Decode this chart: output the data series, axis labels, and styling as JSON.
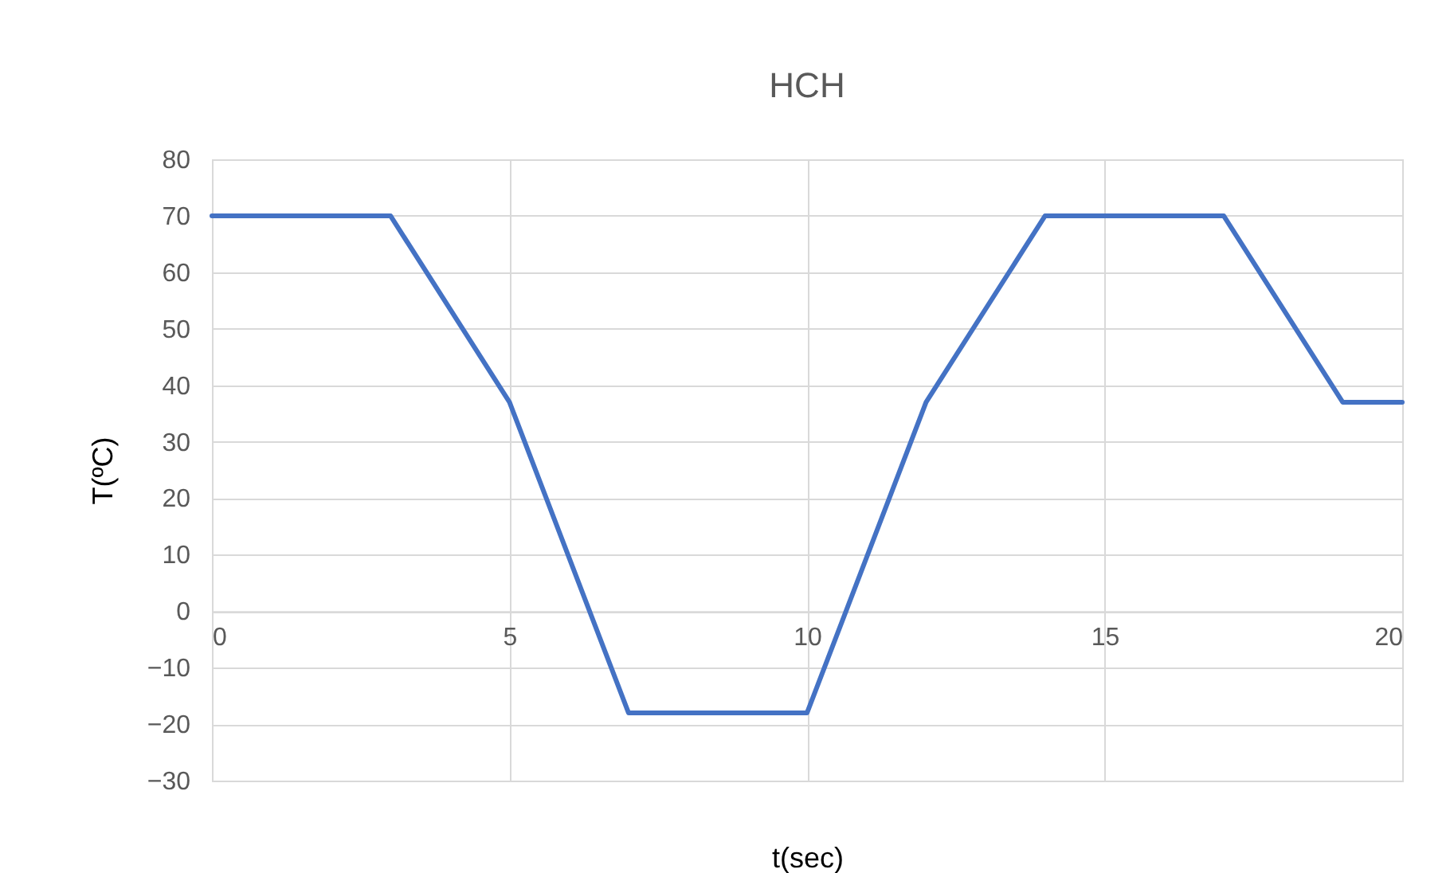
{
  "chart_data": {
    "type": "line",
    "title": "HCH",
    "xlabel": "t(sec)",
    "ylabel": "T(ºC)",
    "x": [
      0,
      3,
      5,
      7,
      10,
      12,
      14,
      17,
      19,
      20
    ],
    "series": [
      {
        "color": "#4472c4",
        "values": [
          70,
          70,
          37,
          -18,
          -18,
          37,
          70,
          70,
          37,
          37
        ]
      }
    ],
    "xlim": [
      0,
      20
    ],
    "xticks": [
      0,
      5,
      10,
      15,
      20
    ],
    "ylim": [
      -30,
      80
    ],
    "yticks": [
      -30,
      -20,
      -10,
      0,
      10,
      20,
      30,
      40,
      50,
      60,
      70,
      80
    ],
    "grid": true,
    "marker": "none",
    "line_style": "solid"
  }
}
